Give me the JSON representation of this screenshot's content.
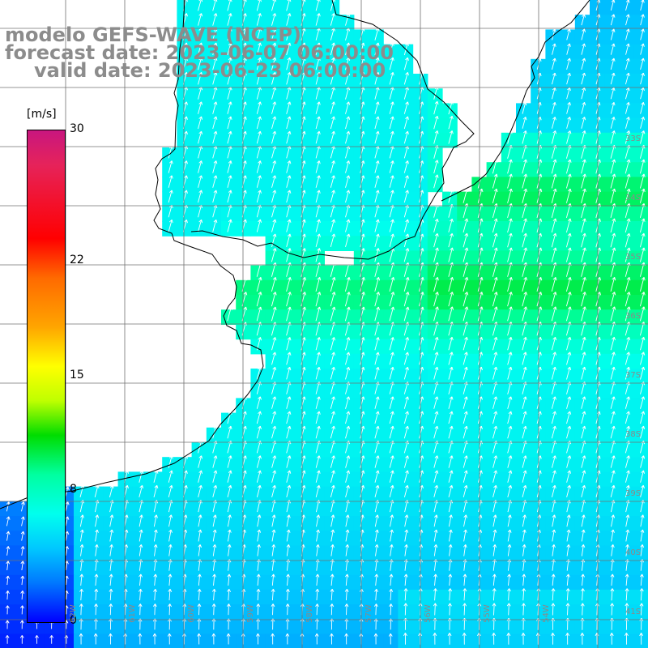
{
  "title": {
    "model": "modelo GEFS-WAVE (NCEP)",
    "forecast": "forecast date: 2023-06-07 06:00:00",
    "valid": "valid date: 2023-06-23 06:00:00"
  },
  "colorbar": {
    "unit": "[m/s]",
    "ticks": [
      "30",
      "22",
      "15",
      "8",
      "0"
    ],
    "tick_values": [
      30,
      22,
      15,
      8,
      0
    ],
    "max": 30,
    "colors": [
      "#0000ff",
      "#0078ff",
      "#00c8ff",
      "#00ffee",
      "#00ffa0",
      "#00dd00",
      "#bfff00",
      "#ffff00",
      "#ffa500",
      "#ff6a00",
      "#ff0000",
      "#e6235a",
      "#c8167f"
    ]
  },
  "lat_labels": [
    "33S",
    "34S",
    "35S",
    "36S",
    "37S",
    "38S",
    "39S",
    "40S",
    "41S"
  ],
  "lon_labels": [
    "62W",
    "61W",
    "60W",
    "59W",
    "58W",
    "57W",
    "56W",
    "55W",
    "54W"
  ],
  "field": {
    "variable": "wind speed",
    "arrows": "wind direction vectors"
  }
}
